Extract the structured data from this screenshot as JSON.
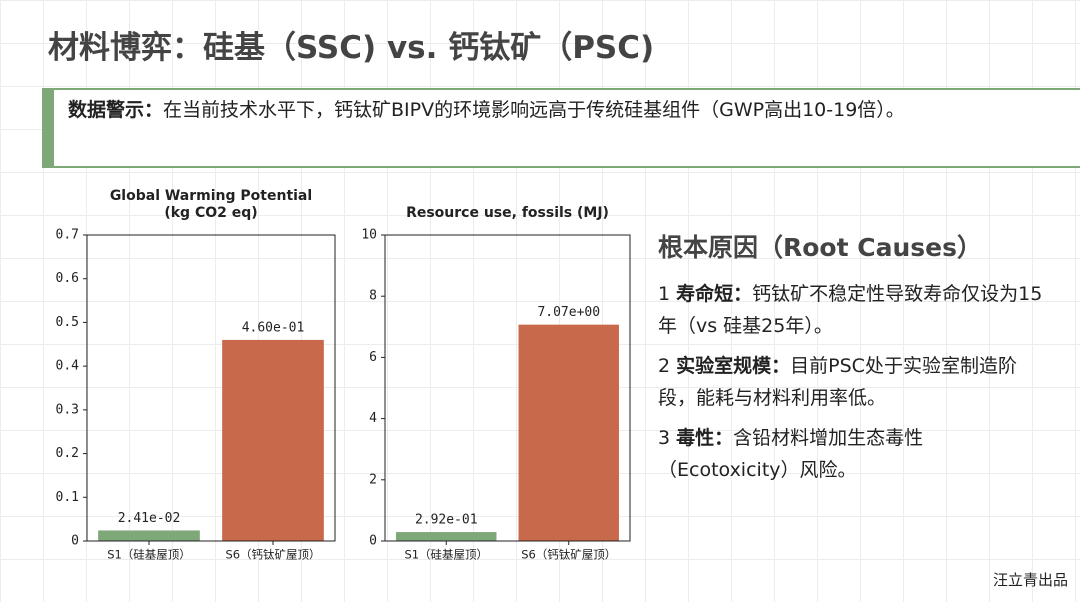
{
  "slide": {
    "title": "材料博弈：硅基（SSC) vs. 钙钛矿（PSC)",
    "callout": {
      "label": "数据警示：",
      "text": "在当前技术水平下，钙钛矿BIPV的环境影响远高于传统硅基组件（GWP高出10-19倍）。"
    },
    "root_causes": {
      "heading": "根本原因（Root Causes）",
      "items": [
        {
          "num": "1",
          "label": "寿命短：",
          "text": "钙钛矿不稳定性导致寿命仅设为15年（vs 硅基25年）。"
        },
        {
          "num": "2",
          "label": "实验室规模：",
          "text": "目前PSC处于实验室制造阶段，能耗与材料利用率低。"
        },
        {
          "num": "3",
          "label": "毒性：",
          "text": "含铅材料增加生态毒性（Ecotoxicity）风险。"
        }
      ]
    },
    "footer": "汪立青出品"
  },
  "chart_data": [
    {
      "type": "bar",
      "title": "Global Warming Potential\n(kg CO2 eq)",
      "categories": [
        "S1（硅基屋顶）",
        "S6（钙钛矿屋顶）"
      ],
      "values": [
        0.0241,
        0.46
      ],
      "value_labels": [
        "2.41e-02",
        "4.60e-01"
      ],
      "colors": [
        "#7fa878",
        "#c8694b"
      ],
      "ylim": [
        0,
        0.7
      ],
      "yticks": [
        0,
        0.1,
        0.2,
        0.3,
        0.4,
        0.5,
        0.6,
        0.7
      ]
    },
    {
      "type": "bar",
      "title": "Resource use, fossils (MJ)",
      "categories": [
        "S1（硅基屋顶）",
        "S6（钙钛矿屋顶）"
      ],
      "values": [
        0.292,
        7.07
      ],
      "value_labels": [
        "2.92e-01",
        "7.07e+00"
      ],
      "colors": [
        "#7fa878",
        "#c8694b"
      ],
      "ylim": [
        0,
        10
      ],
      "yticks": [
        0,
        2,
        4,
        6,
        8,
        10
      ]
    }
  ]
}
